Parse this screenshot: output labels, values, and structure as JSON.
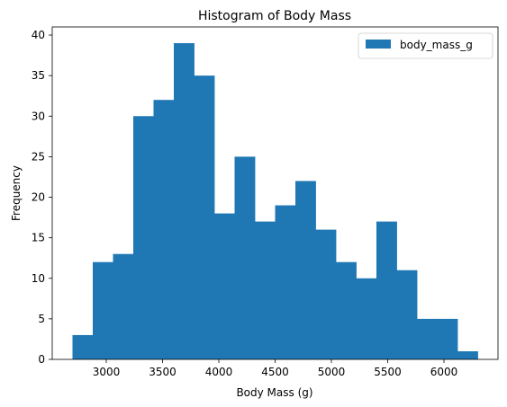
{
  "chart_data": {
    "type": "bar",
    "title": "Histogram of Body Mass",
    "xlabel": "Body Mass (g)",
    "ylabel": "Frequency",
    "xlim": [
      2520,
      6480
    ],
    "ylim": [
      0,
      41
    ],
    "x_ticks": [
      3000,
      3500,
      4000,
      4500,
      5000,
      5500,
      6000
    ],
    "y_ticks": [
      0,
      5,
      10,
      15,
      20,
      25,
      30,
      35,
      40
    ],
    "grid": false,
    "legend_position": "upper right",
    "bin_start": 2700,
    "bin_width": 180,
    "series": [
      {
        "name": "body_mass_g",
        "color": "#1f77b4",
        "values": [
          3,
          12,
          13,
          30,
          32,
          39,
          35,
          18,
          25,
          17,
          19,
          22,
          16,
          12,
          10,
          17,
          11,
          5,
          5,
          1
        ]
      }
    ]
  }
}
